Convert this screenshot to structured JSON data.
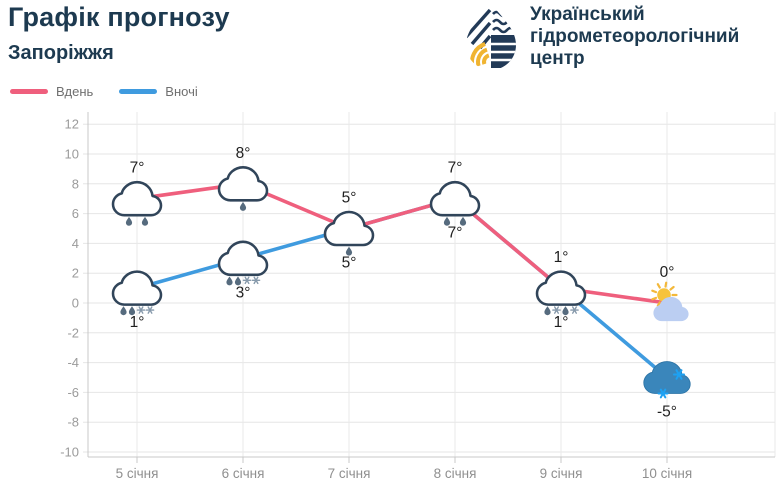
{
  "header": {
    "title": "Графік прогнозу",
    "city": "Запоріжжя",
    "org_lines": [
      "Український",
      "гідрометеорологічний",
      "центр"
    ]
  },
  "colors": {
    "brand_navy": "#1d3a50",
    "day_line": "#ef5f7d",
    "night_line": "#3f9bdf",
    "sun_yellow": "#f6c33c",
    "logo_yellow": "#f0b431",
    "axis_text": "#8f8f8f",
    "temp_text": "#1f1f1f",
    "grid": "#e6e6e6"
  },
  "chart_data": {
    "type": "line",
    "title": "Графік прогнозу",
    "subtitle": "Запоріжжя",
    "categories": [
      "5 січня",
      "6 січня",
      "7 січня",
      "8 січня",
      "9 січня",
      "10 січня"
    ],
    "series": [
      {
        "name": "Вдень",
        "color": "#ef5f7d",
        "values": [
          7,
          8,
          5,
          7,
          1,
          0
        ],
        "point_labels": [
          "7°",
          "8°",
          "5°",
          "7°",
          "1°",
          "0°"
        ],
        "icons": [
          "cloud-rain",
          "cloud-light-rain",
          "cloud-light-rain",
          "cloud-rain",
          "cloud-snow-mix",
          "sun-behind-cloud"
        ],
        "label_position": "above"
      },
      {
        "name": "Вночі",
        "color": "#3f9bdf",
        "values": [
          1,
          3,
          5,
          7,
          1,
          -5
        ],
        "point_labels": [
          "1°",
          "3°",
          "5°",
          "7°",
          "1°",
          "-5°"
        ],
        "icons": [
          "cloud-rain-snow",
          "cloud-rain-snow",
          null,
          null,
          null,
          "blue-snow-cloud"
        ],
        "label_position": "below"
      }
    ],
    "ylim": [
      -10,
      12
    ],
    "yticks": [
      12,
      10,
      8,
      6,
      4,
      2,
      0,
      -2,
      -4,
      -6,
      -8,
      -10
    ],
    "grid": true,
    "legend_position": "top-left"
  }
}
